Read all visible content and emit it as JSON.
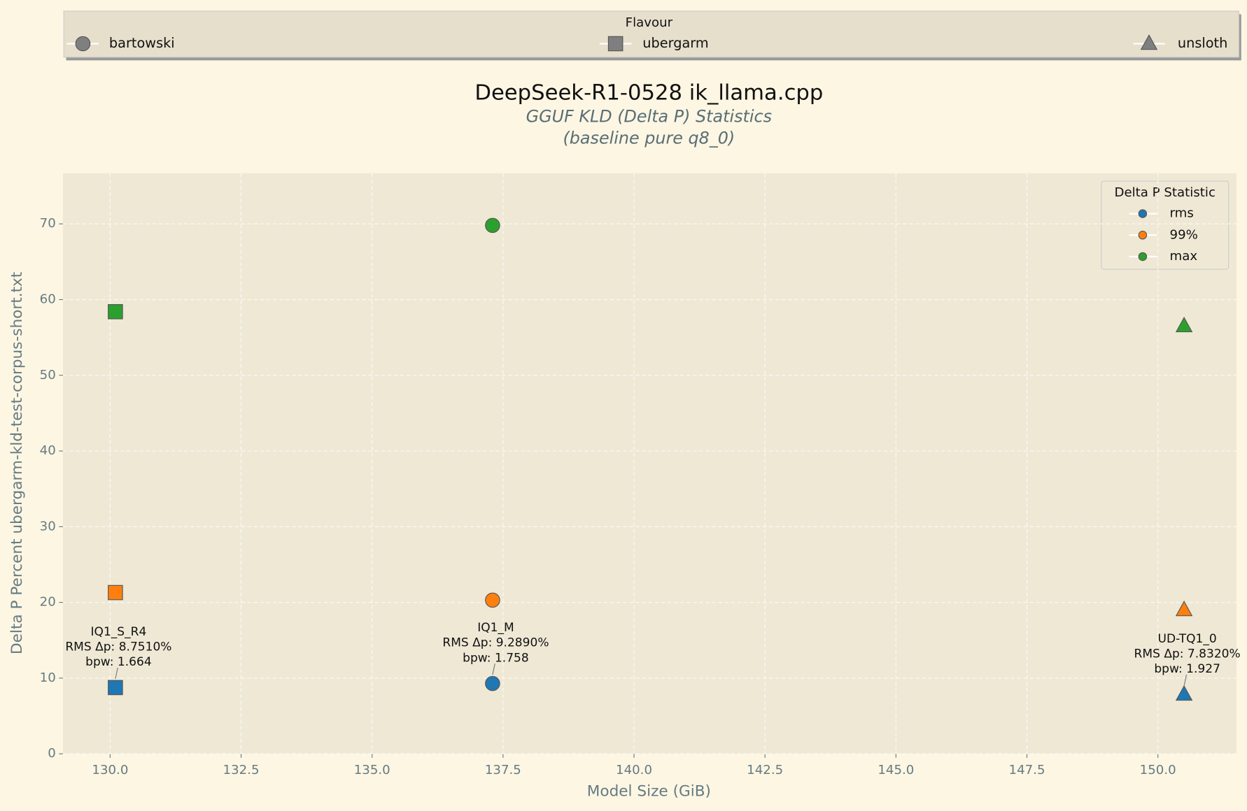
{
  "chart_data": {
    "type": "scatter",
    "title": "DeepSeek-R1-0528 ik_llama.cpp",
    "subtitle": [
      "GGUF KLD (Delta P) Statistics",
      "(baseline pure q8_0)"
    ],
    "x_label": "Model Size (GiB)",
    "y_label": "Delta P Percent ubergarm-kld-test-corpus-short.txt",
    "x": [
      130.1,
      137.3,
      150.5
    ],
    "flavours": [
      {
        "name": "ubergarm",
        "marker": "square"
      },
      {
        "name": "bartowski",
        "marker": "circle"
      },
      {
        "name": "unsloth",
        "marker": "triangle"
      }
    ],
    "flavour_legend": {
      "title": "Flavour",
      "order": [
        1,
        0,
        2
      ]
    },
    "series": [
      {
        "name": "rms",
        "color": "#1f77b4",
        "values": [
          8.751,
          9.289,
          7.832
        ]
      },
      {
        "name": "99%",
        "color": "#ff7f0e",
        "values": [
          21.3,
          20.3,
          19.0
        ]
      },
      {
        "name": "max",
        "color": "#2ca02c",
        "values": [
          58.4,
          69.8,
          56.5
        ]
      }
    ],
    "legend_title": "Delta P Statistic",
    "legend_position": "upper right",
    "annotations": [
      [
        "IQ1_S_R4",
        "RMS Δp: 8.7510%",
        "bpw: 1.664"
      ],
      [
        "IQ1_M",
        "RMS Δp: 9.2890%",
        "bpw: 1.758"
      ],
      [
        "UD-TQ1_0",
        "RMS Δp: 7.8320%",
        "bpw: 1.927"
      ]
    ],
    "xlim": [
      129.1,
      151.5
    ],
    "ylim": [
      0,
      76.7
    ],
    "xticks": [
      {
        "value": 130,
        "label": "130.0"
      },
      {
        "value": 132.5,
        "label": "132.5"
      },
      {
        "value": 135,
        "label": "135.0"
      },
      {
        "value": 137.5,
        "label": "137.5"
      },
      {
        "value": 140,
        "label": "140.0"
      },
      {
        "value": 142.5,
        "label": "142.5"
      },
      {
        "value": 145,
        "label": "145.0"
      },
      {
        "value": 147.5,
        "label": "147.5"
      },
      {
        "value": 150,
        "label": "150.0"
      }
    ],
    "yticks": [
      0,
      10,
      20,
      30,
      40,
      50,
      60,
      70
    ],
    "grid": true
  }
}
